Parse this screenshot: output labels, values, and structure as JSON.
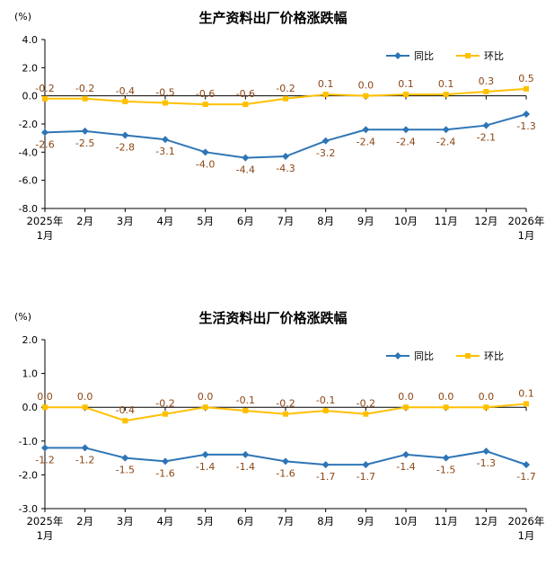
{
  "page": {
    "background": "#ffffff"
  },
  "chart_data": [
    {
      "type": "line",
      "title": "生产资料出厂价格涨跌幅",
      "unit_label": "(%)",
      "ylim": [
        -8.0,
        4.0
      ],
      "ytick_step": 2.0,
      "label_color": "#8B4513",
      "axis_color": "#000000",
      "legend_position": "top-right",
      "categories": [
        [
          "2025年",
          "1月"
        ],
        [
          "2月"
        ],
        [
          "3月"
        ],
        [
          "4月"
        ],
        [
          "5月"
        ],
        [
          "6月"
        ],
        [
          "7月"
        ],
        [
          "8月"
        ],
        [
          "9月"
        ],
        [
          "10月"
        ],
        [
          "11月"
        ],
        [
          "12月"
        ],
        [
          "2026年",
          "1月"
        ]
      ],
      "series": [
        {
          "id": "tongbi",
          "name": "同比",
          "color": "#2E75B6",
          "marker": "diamond",
          "label_pos": "below",
          "values": [
            -2.6,
            -2.5,
            -2.8,
            -3.1,
            -4.0,
            -4.4,
            -4.3,
            -3.2,
            -2.4,
            -2.4,
            -2.4,
            -2.1,
            -1.3
          ]
        },
        {
          "id": "huanbi",
          "name": "环比",
          "color": "#FFC000",
          "marker": "square",
          "label_pos": "above",
          "values": [
            -0.2,
            -0.2,
            -0.4,
            -0.5,
            -0.6,
            -0.6,
            -0.2,
            0.1,
            0.0,
            0.1,
            0.1,
            0.3,
            0.5
          ]
        }
      ]
    },
    {
      "type": "line",
      "title": "生活资料出厂价格涨跌幅",
      "unit_label": "(%)",
      "ylim": [
        -3.0,
        2.0
      ],
      "ytick_step": 1.0,
      "label_color": "#8B4513",
      "axis_color": "#000000",
      "legend_position": "top-right",
      "categories": [
        [
          "2025年",
          "1月"
        ],
        [
          "2月"
        ],
        [
          "3月"
        ],
        [
          "4月"
        ],
        [
          "5月"
        ],
        [
          "6月"
        ],
        [
          "7月"
        ],
        [
          "8月"
        ],
        [
          "9月"
        ],
        [
          "10月"
        ],
        [
          "11月"
        ],
        [
          "12月"
        ],
        [
          "2026年",
          "1月"
        ]
      ],
      "series": [
        {
          "id": "tongbi",
          "name": "同比",
          "color": "#2E75B6",
          "marker": "diamond",
          "label_pos": "below",
          "values": [
            -1.2,
            -1.2,
            -1.5,
            -1.6,
            -1.4,
            -1.4,
            -1.6,
            -1.7,
            -1.7,
            -1.4,
            -1.5,
            -1.3,
            -1.7
          ]
        },
        {
          "id": "huanbi",
          "name": "环比",
          "color": "#FFC000",
          "marker": "square",
          "label_pos": "above",
          "values": [
            0.0,
            0.0,
            -0.4,
            -0.2,
            0.0,
            -0.1,
            -0.2,
            -0.1,
            -0.2,
            0.0,
            0.0,
            0.0,
            0.1
          ]
        }
      ]
    }
  ]
}
